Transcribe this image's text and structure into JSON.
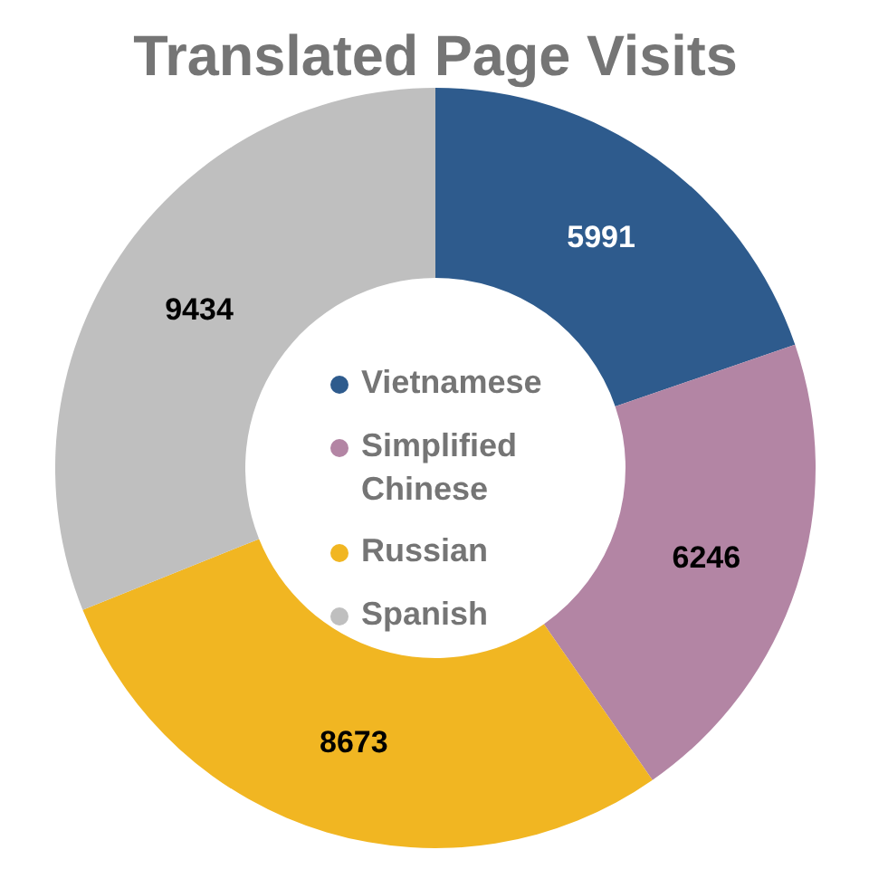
{
  "chart_data": {
    "type": "donut",
    "title": "Translated Page Visits",
    "categories": [
      "Vietnamese",
      "Simplified Chinese",
      "Russian",
      "Spanish"
    ],
    "values": [
      5991,
      6246,
      8673,
      9434
    ],
    "colors": [
      "#2e5b8d",
      "#b385a4",
      "#f1b622",
      "#bfbfbf"
    ],
    "data_labels": true,
    "legend": "center",
    "marker": "circle"
  }
}
